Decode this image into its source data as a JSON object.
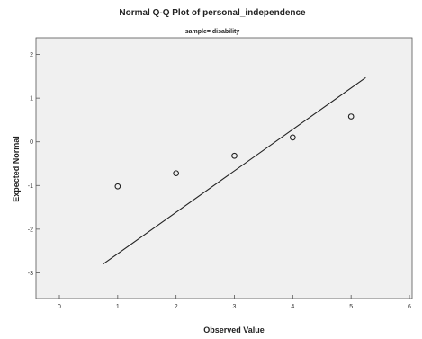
{
  "chart_data": {
    "type": "scatter",
    "title": "Normal Q-Q Plot of personal_independence",
    "subtitle": "sample= disability",
    "xlabel": "Observed Value",
    "ylabel": "Expected Normal",
    "xlim": [
      0,
      6
    ],
    "ylim": [
      -3.3,
      2.3
    ],
    "x_ticks": [
      "0",
      "1",
      "2",
      "3",
      "4",
      "5",
      "6"
    ],
    "y_ticks": [
      "2",
      "1",
      "0",
      "-1",
      "-2",
      "-3"
    ],
    "points": [
      {
        "x": 1,
        "y": -1.02
      },
      {
        "x": 2,
        "y": -0.72
      },
      {
        "x": 3,
        "y": -0.32
      },
      {
        "x": 4,
        "y": 0.1
      },
      {
        "x": 5,
        "y": 0.58
      }
    ],
    "reference_line": {
      "x": [
        0.75,
        5.25
      ],
      "y": [
        -2.8,
        1.47
      ]
    },
    "colors": {
      "plot_background": "#f0f0f0",
      "points": "#222222",
      "line": "#222222"
    }
  }
}
